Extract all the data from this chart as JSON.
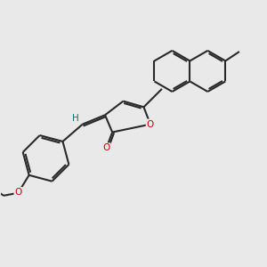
{
  "background_color": "#e9e9e9",
  "bond_color": "#2a2a2a",
  "oxygen_color": "#cc0000",
  "hydrogen_color": "#007070",
  "line_width": 1.5,
  "dbo": 0.035,
  "figsize": [
    3.0,
    3.0
  ],
  "dpi": 100,
  "xlim": [
    -2.5,
    5.5
  ],
  "ylim": [
    -3.2,
    3.0
  ]
}
